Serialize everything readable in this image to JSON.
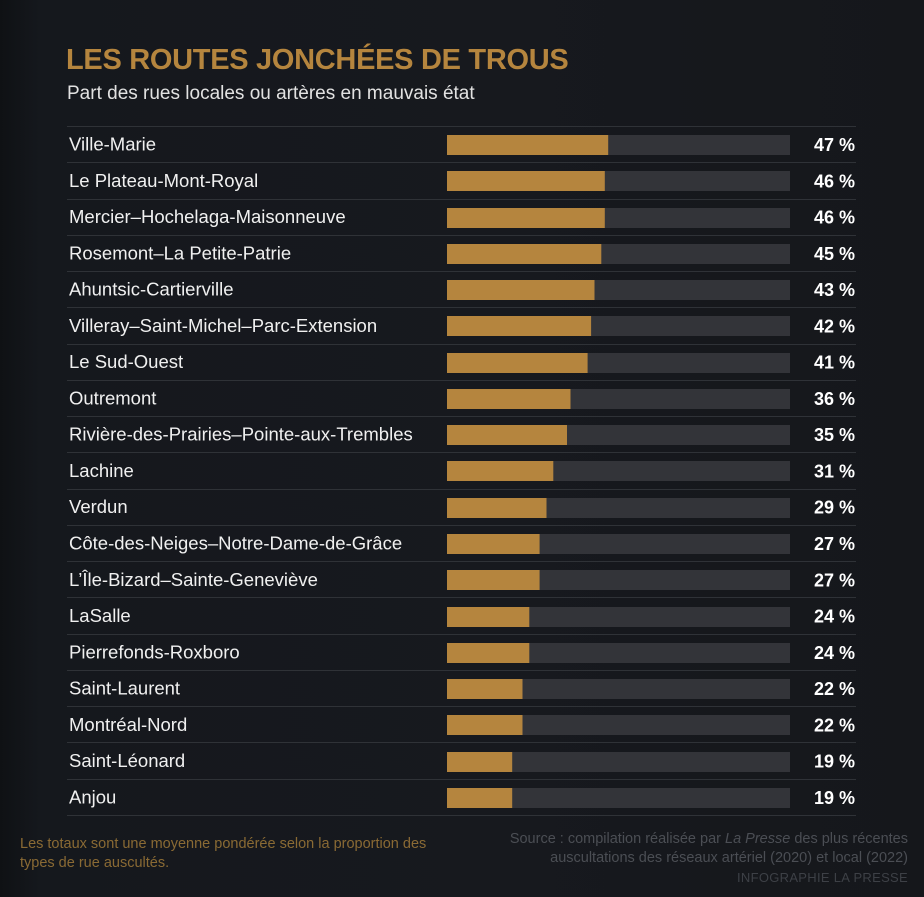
{
  "colors": {
    "bar": "#b5853e",
    "track": "#333439",
    "separator": "#2f3237",
    "title": "#b5853e"
  },
  "header": {
    "title": "LES ROUTES JONCHÉES DE TROUS",
    "subtitle": "Part des rues locales ou artères en mauvais état"
  },
  "footer": {
    "note": "Les totaux sont une moyenne pondérée selon la proportion des types de rue auscultés.",
    "source_prefix": "Source : compilation réalisée par ",
    "source_publication": "La Presse",
    "source_suffix": " des plus récentes auscultations des réseaux artériel (2020) et local (2022)",
    "credit": "INFOGRAPHIE LA PRESSE"
  },
  "chart_data": {
    "type": "bar",
    "orientation": "horizontal",
    "title": "LES ROUTES JONCHÉES DE TROUS",
    "subtitle": "Part des rues locales ou artères en mauvais état",
    "xlim": [
      0,
      100
    ],
    "unit": "%",
    "grid": false,
    "categories": [
      "Ville-Marie",
      "Le Plateau-Mont-Royal",
      "Mercier–Hochelaga-Maisonneuve",
      "Rosemont–La Petite-Patrie",
      "Ahuntsic-Cartierville",
      "Villeray–Saint-Michel–Parc-Extension",
      "Le Sud-Ouest",
      "Outremont",
      "Rivière-des-Prairies–Pointe-aux-Trembles",
      "Lachine",
      "Verdun",
      "Côte-des-Neiges–Notre-Dame-de-Grâce",
      "L’Île-Bizard–Sainte-Geneviève",
      "LaSalle",
      "Pierrefonds-Roxboro",
      "Saint-Laurent",
      "Montréal-Nord",
      "Saint-Léonard",
      "Anjou"
    ],
    "values": [
      47,
      46,
      46,
      45,
      43,
      42,
      41,
      36,
      35,
      31,
      29,
      27,
      27,
      24,
      24,
      22,
      22,
      19,
      19
    ],
    "value_labels": [
      "47 %",
      "46 %",
      "46 %",
      "45 %",
      "43 %",
      "42 %",
      "41 %",
      "36 %",
      "35 %",
      "31 %",
      "29 %",
      "27 %",
      "27 %",
      "24 %",
      "24 %",
      "22 %",
      "22 %",
      "19 %",
      "19 %"
    ]
  }
}
